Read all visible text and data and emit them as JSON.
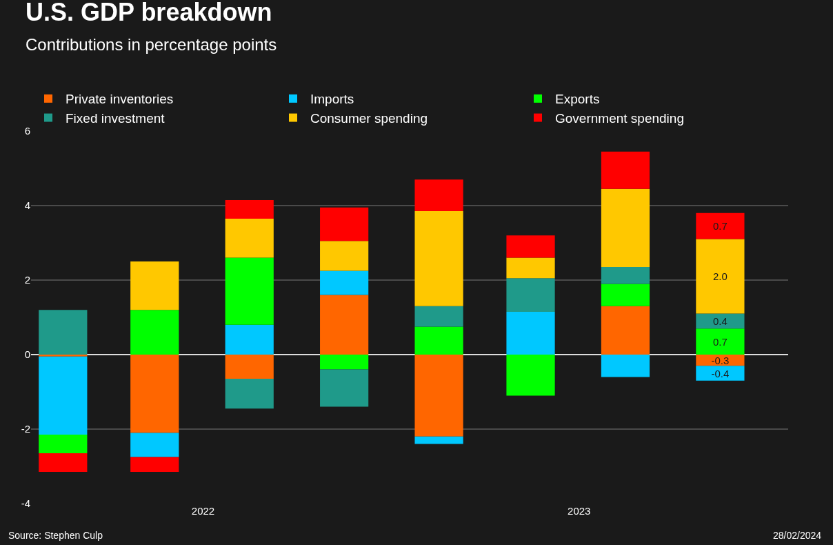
{
  "chart_data": {
    "type": "bar",
    "stacked": true,
    "title": "U.S. GDP breakdown",
    "subtitle": "Contributions in percentage points",
    "x": [
      "2022-02-15",
      "2022-05-15",
      "2022-08-15",
      "2022-11-15",
      "2023-02-15",
      "2023-05-15",
      "2023-08-15",
      "2023-11-15"
    ],
    "xlim": [
      "2022-01-15",
      "2024-01-20"
    ],
    "xticks": [
      {
        "value": "2022-07-01",
        "label": "2022"
      },
      {
        "value": "2023-07-01",
        "label": "2023"
      }
    ],
    "ylim": [
      -4,
      6
    ],
    "yticks": [
      -4,
      -2,
      0,
      2,
      4,
      6
    ],
    "grid": "y",
    "legend": "top",
    "series": [
      {
        "name": "Private inventories",
        "color": "#ff6600",
        "values": [
          -0.05,
          -2.1,
          -0.65,
          1.6,
          -2.2,
          null,
          1.3,
          -0.3
        ],
        "value_labels": [
          null,
          null,
          null,
          null,
          null,
          null,
          null,
          "-0.3"
        ]
      },
      {
        "name": "Imports",
        "color": "#00c8ff",
        "values": [
          -2.1,
          -0.65,
          0.8,
          0.65,
          -0.2,
          1.15,
          -0.6,
          -0.4
        ],
        "value_labels": [
          null,
          null,
          null,
          null,
          null,
          null,
          null,
          "-0.4"
        ]
      },
      {
        "name": "Exports",
        "color": "#00ff00",
        "values": [
          -0.5,
          1.2,
          1.8,
          -0.4,
          0.75,
          -1.1,
          0.6,
          0.7
        ],
        "value_labels": [
          null,
          null,
          null,
          null,
          null,
          null,
          null,
          "0.7"
        ]
      },
      {
        "name": "Fixed investment",
        "color": "#1f9a8a",
        "values": [
          1.2,
          null,
          -0.8,
          -1.0,
          0.55,
          0.9,
          0.45,
          0.4
        ],
        "value_labels": [
          null,
          null,
          null,
          null,
          null,
          null,
          null,
          "0.4"
        ]
      },
      {
        "name": "Consumer spending",
        "color": "#ffc800",
        "values": [
          null,
          1.3,
          1.05,
          0.8,
          2.55,
          0.55,
          2.1,
          2.0
        ],
        "value_labels": [
          null,
          null,
          null,
          null,
          null,
          null,
          null,
          "2.0"
        ]
      },
      {
        "name": "Government spending",
        "color": "#ff0000",
        "values": [
          -0.5,
          -0.4,
          0.5,
          0.9,
          0.85,
          0.6,
          1.0,
          0.7
        ],
        "value_labels": [
          null,
          null,
          null,
          null,
          null,
          null,
          null,
          "0.7"
        ]
      }
    ],
    "annotations": [
      "Source: Stephen Culp",
      "28/02/2024"
    ]
  }
}
